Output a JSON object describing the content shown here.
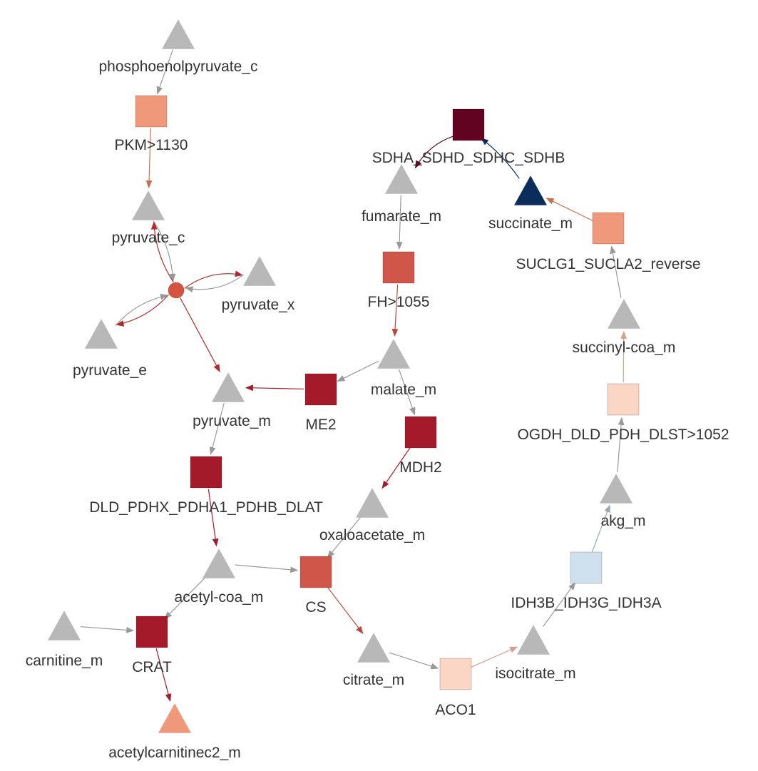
{
  "nodes": [
    {
      "id": "phosphoenolpyruvate_c",
      "label": "phosphoenolpyruvate_c",
      "shape": "triangle",
      "color": "#b8b8b8"
    },
    {
      "id": "PKM",
      "label": "PKM>1130",
      "shape": "square",
      "color": "#f0987a"
    },
    {
      "id": "pyruvate_c",
      "label": "pyruvate_c",
      "shape": "triangle",
      "color": "#b8b8b8"
    },
    {
      "id": "pyr_transport",
      "label": "",
      "shape": "circle",
      "color": "#d6533f"
    },
    {
      "id": "pyruvate_x",
      "label": "pyruvate_x",
      "shape": "triangle",
      "color": "#b8b8b8"
    },
    {
      "id": "pyruvate_e",
      "label": "pyruvate_e",
      "shape": "triangle",
      "color": "#b8b8b8"
    },
    {
      "id": "pyruvate_m",
      "label": "pyruvate_m",
      "shape": "triangle",
      "color": "#b8b8b8"
    },
    {
      "id": "ME2",
      "label": "ME2",
      "shape": "square",
      "color": "#a51a2a"
    },
    {
      "id": "malate_m",
      "label": "malate_m",
      "shape": "triangle",
      "color": "#b8b8b8"
    },
    {
      "id": "FH",
      "label": "FH>1055",
      "shape": "square",
      "color": "#d1564a"
    },
    {
      "id": "fumarate_m",
      "label": "fumarate_m",
      "shape": "triangle",
      "color": "#b8b8b8"
    },
    {
      "id": "SDH",
      "label": "SDHA_SDHD_SDHC_SDHB",
      "shape": "square",
      "color": "#610321"
    },
    {
      "id": "succinate_m",
      "label": "succinate_m",
      "shape": "triangle",
      "color": "#0b2d5c"
    },
    {
      "id": "SUCLG",
      "label": "SUCLG1_SUCLA2_reverse",
      "shape": "square",
      "color": "#f0987a"
    },
    {
      "id": "succinyl_coa_m",
      "label": "succinyl-coa_m",
      "shape": "triangle",
      "color": "#b8b8b8"
    },
    {
      "id": "OGDH",
      "label": "OGDH_DLD_PDH_DLST>1052",
      "shape": "square",
      "color": "#fbd6c4"
    },
    {
      "id": "akg_m",
      "label": "akg_m",
      "shape": "triangle",
      "color": "#b8b8b8"
    },
    {
      "id": "IDH3",
      "label": "IDH3B_IDH3G_IDH3A",
      "shape": "square",
      "color": "#cfe1ee"
    },
    {
      "id": "isocitrate_m",
      "label": "isocitrate_m",
      "shape": "triangle",
      "color": "#b8b8b8"
    },
    {
      "id": "ACO1",
      "label": "ACO1",
      "shape": "square",
      "color": "#fbd6c4"
    },
    {
      "id": "citrate_m",
      "label": "citrate_m",
      "shape": "triangle",
      "color": "#b8b8b8"
    },
    {
      "id": "CS",
      "label": "CS",
      "shape": "square",
      "color": "#d1564a"
    },
    {
      "id": "MDH2",
      "label": "MDH2",
      "shape": "square",
      "color": "#a51a2a"
    },
    {
      "id": "oxaloacetate_m",
      "label": "oxaloacetate_m",
      "shape": "triangle",
      "color": "#b8b8b8"
    },
    {
      "id": "PDH",
      "label": "DLD_PDHX_PDHA1_PDHB_DLAT",
      "shape": "square",
      "color": "#a51a2a"
    },
    {
      "id": "acetyl_coa_m",
      "label": "acetyl-coa_m",
      "shape": "triangle",
      "color": "#b8b8b8"
    },
    {
      "id": "carnitine_m",
      "label": "carnitine_m",
      "shape": "triangle",
      "color": "#b8b8b8"
    },
    {
      "id": "CRAT",
      "label": "CRAT",
      "shape": "square",
      "color": "#a51a2a"
    },
    {
      "id": "acetylcarnitinec2_m",
      "label": "acetylcarnitinec2_m",
      "shape": "triangle",
      "color": "#f0987a"
    }
  ],
  "edges": [
    {
      "from": "phosphoenolpyruvate_c",
      "to": "PKM",
      "color": "#999999"
    },
    {
      "from": "PKM",
      "to": "pyruvate_c",
      "color": "#c4714f"
    },
    {
      "from": "pyruvate_c",
      "to": "pyr_transport",
      "color": "#999999"
    },
    {
      "from": "pyr_transport",
      "to": "pyruvate_c",
      "color": "#b02a2a"
    },
    {
      "from": "pyr_transport",
      "to": "pyruvate_x",
      "color": "#b02a2a"
    },
    {
      "from": "pyruvate_x",
      "to": "pyr_transport",
      "color": "#999999"
    },
    {
      "from": "pyr_transport",
      "to": "pyruvate_e",
      "color": "#b02a2a"
    },
    {
      "from": "pyruvate_e",
      "to": "pyr_transport",
      "color": "#999999"
    },
    {
      "from": "pyr_transport",
      "to": "pyruvate_m",
      "color": "#b02a2a"
    },
    {
      "from": "ME2",
      "to": "pyruvate_m",
      "color": "#a51a2a"
    },
    {
      "from": "malate_m",
      "to": "ME2",
      "color": "#999999"
    },
    {
      "from": "fumarate_m",
      "to": "FH",
      "color": "#999999"
    },
    {
      "from": "FH",
      "to": "malate_m",
      "color": "#b8483c"
    },
    {
      "from": "SDH",
      "to": "fumarate_m",
      "color": "#610321"
    },
    {
      "from": "succinate_m",
      "to": "SDH",
      "color": "#0b2d5c"
    },
    {
      "from": "SUCLG",
      "to": "succinate_m",
      "color": "#c4714f"
    },
    {
      "from": "succinyl_coa_m",
      "to": "SUCLG",
      "color": "#999999"
    },
    {
      "from": "OGDH",
      "to": "succinyl_coa_m",
      "color": "#d4a18e"
    },
    {
      "from": "akg_m",
      "to": "OGDH",
      "color": "#999999"
    },
    {
      "from": "IDH3",
      "to": "akg_m",
      "color": "#9aa8b4"
    },
    {
      "from": "isocitrate_m",
      "to": "IDH3",
      "color": "#999999"
    },
    {
      "from": "ACO1",
      "to": "isocitrate_m",
      "color": "#d4a18e"
    },
    {
      "from": "citrate_m",
      "to": "ACO1",
      "color": "#999999"
    },
    {
      "from": "CS",
      "to": "citrate_m",
      "color": "#b8483c"
    },
    {
      "from": "oxaloacetate_m",
      "to": "CS",
      "color": "#999999"
    },
    {
      "from": "acetyl_coa_m",
      "to": "CS",
      "color": "#999999"
    },
    {
      "from": "malate_m",
      "to": "MDH2",
      "color": "#999999"
    },
    {
      "from": "MDH2",
      "to": "oxaloacetate_m",
      "color": "#a51a2a"
    },
    {
      "from": "pyruvate_m",
      "to": "PDH",
      "color": "#999999"
    },
    {
      "from": "PDH",
      "to": "acetyl_coa_m",
      "color": "#a51a2a"
    },
    {
      "from": "acetyl_coa_m",
      "to": "CRAT",
      "color": "#999999"
    },
    {
      "from": "carnitine_m",
      "to": "CRAT",
      "color": "#999999"
    },
    {
      "from": "CRAT",
      "to": "acetylcarnitinec2_m",
      "color": "#a51a2a"
    }
  ]
}
